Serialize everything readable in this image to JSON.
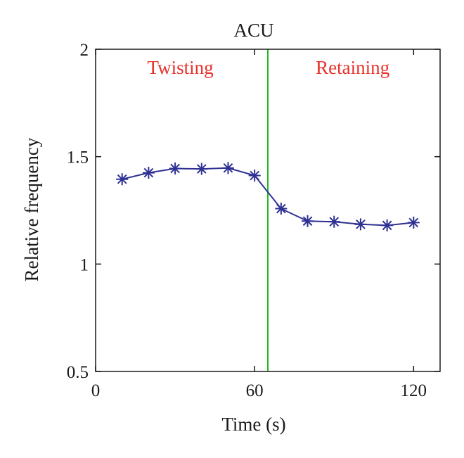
{
  "chart_data": {
    "type": "line",
    "title": "ACU",
    "xlabel": "Time (s)",
    "ylabel": "Relative frequency",
    "xlim": [
      0,
      130
    ],
    "ylim": [
      0.5,
      2
    ],
    "xticks": [
      0,
      60,
      120
    ],
    "xtick_labels": [
      "0",
      "60",
      "120"
    ],
    "yticks": [
      0.5,
      1,
      1.5,
      2
    ],
    "ytick_labels": [
      "0.5",
      "1",
      "1.5",
      "2"
    ],
    "grid": false,
    "legend": "none",
    "series": [
      {
        "color": "#2e3192",
        "marker": "asterisk",
        "x": [
          10,
          20,
          30,
          40,
          50,
          60,
          70,
          80,
          90,
          100,
          110,
          120
        ],
        "y": [
          1.395,
          1.425,
          1.445,
          1.443,
          1.447,
          1.412,
          1.258,
          1.2,
          1.197,
          1.185,
          1.18,
          1.193
        ]
      }
    ],
    "vline": {
      "x": 65,
      "color": "#22bb22"
    },
    "annotations": [
      {
        "text": "Twisting",
        "x": 32,
        "y": 1.885,
        "color": "#e8312a"
      },
      {
        "text": "Retaining",
        "x": 97,
        "y": 1.885,
        "color": "#e8312a"
      }
    ]
  }
}
